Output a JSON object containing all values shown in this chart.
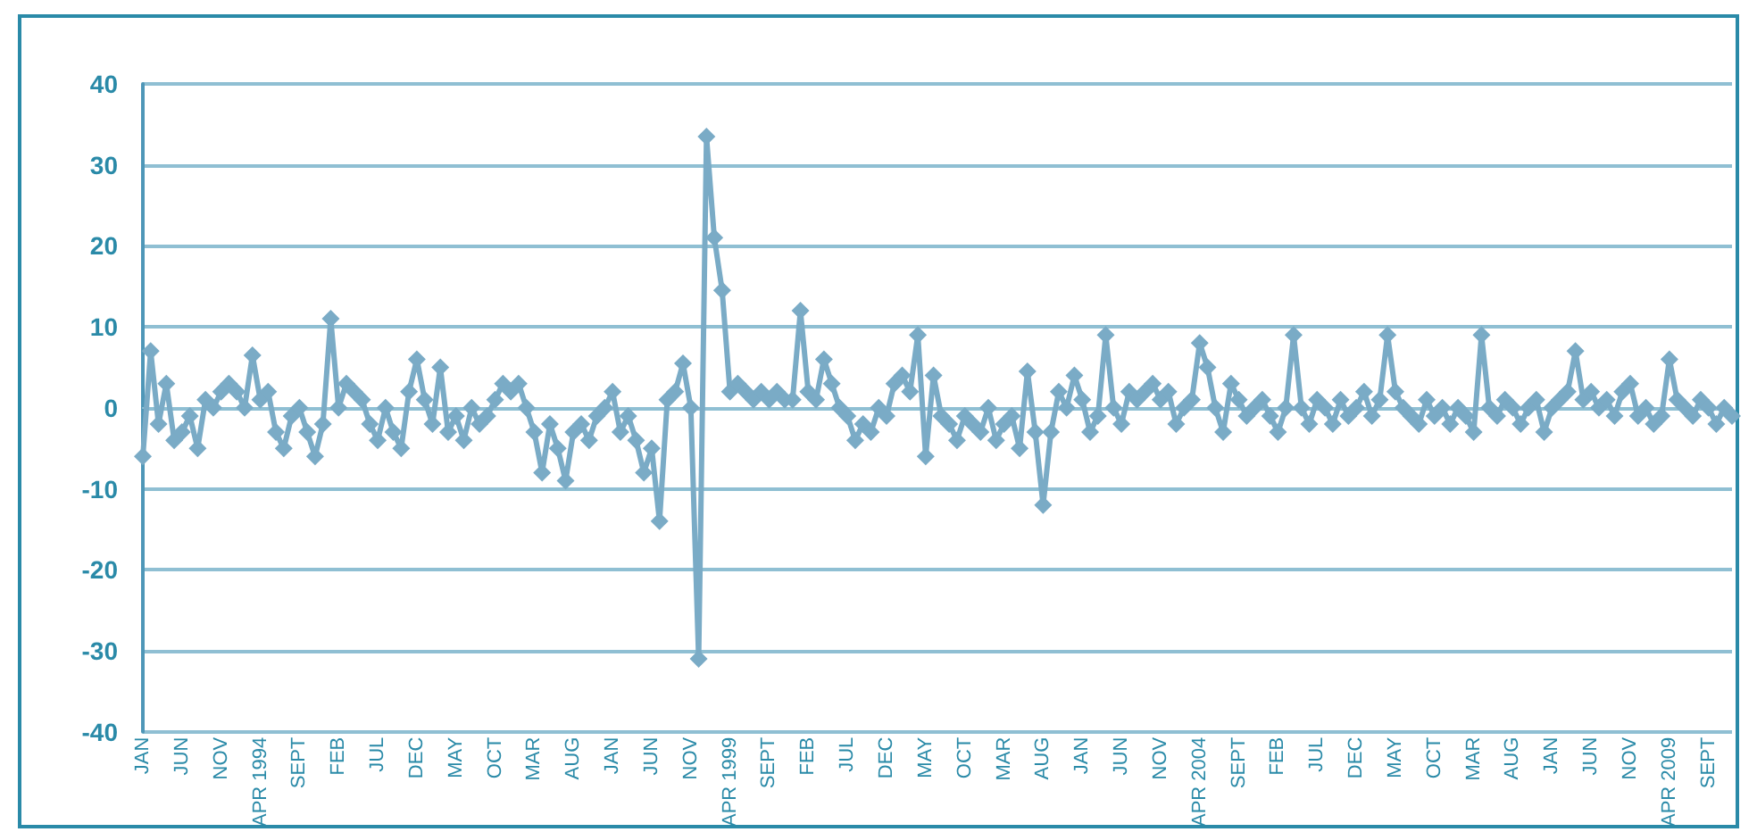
{
  "chart_data": {
    "type": "line",
    "marker": "diamond",
    "line_style": "solid",
    "grid": "y",
    "categories": [
      "JAN",
      null,
      null,
      null,
      null,
      "JUN",
      null,
      null,
      null,
      null,
      "NOV",
      null,
      null,
      null,
      null,
      "APR 1994",
      null,
      null,
      null,
      null,
      "SEPT",
      null,
      null,
      null,
      null,
      "FEB",
      null,
      null,
      null,
      null,
      "JUL",
      null,
      null,
      null,
      null,
      "DEC",
      null,
      null,
      null,
      null,
      "MAY",
      null,
      null,
      null,
      null,
      "OCT",
      null,
      null,
      null,
      null,
      "MAR",
      null,
      null,
      null,
      null,
      "AUG",
      null,
      null,
      null,
      null,
      "JAN",
      null,
      null,
      null,
      null,
      "JUN",
      null,
      null,
      null,
      null,
      "NOV",
      null,
      null,
      null,
      null,
      "APR 1999",
      null,
      null,
      null,
      null,
      "SEPT",
      null,
      null,
      null,
      null,
      "FEB",
      null,
      null,
      null,
      null,
      "JUL",
      null,
      null,
      null,
      null,
      "DEC",
      null,
      null,
      null,
      null,
      "MAY",
      null,
      null,
      null,
      null,
      "OCT",
      null,
      null,
      null,
      null,
      "MAR",
      null,
      null,
      null,
      null,
      "AUG",
      null,
      null,
      null,
      null,
      "JAN",
      null,
      null,
      null,
      null,
      "JUN",
      null,
      null,
      null,
      null,
      "NOV",
      null,
      null,
      null,
      null,
      "APR 2004",
      null,
      null,
      null,
      null,
      "SEPT",
      null,
      null,
      null,
      null,
      "FEB",
      null,
      null,
      null,
      null,
      "JUL",
      null,
      null,
      null,
      null,
      "DEC",
      null,
      null,
      null,
      null,
      "MAY",
      null,
      null,
      null,
      null,
      "OCT",
      null,
      null,
      null,
      null,
      "MAR",
      null,
      null,
      null,
      null,
      "AUG",
      null,
      null,
      null,
      null,
      "JAN",
      null,
      null,
      null,
      null,
      "JUN",
      null,
      null,
      null,
      null,
      "NOV",
      null,
      null,
      null,
      null,
      "APR 2009",
      null,
      null,
      null,
      null,
      "SEPT",
      null,
      null,
      null
    ],
    "series": [
      {
        "color": "#7aabc6",
        "values": [
          -6,
          7,
          -2,
          3,
          -4,
          -3,
          -1,
          -5,
          1,
          0,
          2,
          3,
          2,
          0,
          6.5,
          1,
          2,
          -3,
          -5,
          -1,
          0,
          -3,
          -6,
          -2,
          11,
          0,
          3,
          2,
          1,
          -2,
          -4,
          0,
          -3,
          -5,
          2,
          6,
          1,
          -2,
          5,
          -3,
          -1,
          -4,
          0,
          -2,
          -1,
          1,
          3,
          2,
          3,
          0,
          -3,
          -8,
          -2,
          -5,
          -9,
          -3,
          -2,
          -4,
          -1,
          0,
          2,
          -3,
          -1,
          -4,
          -8,
          -5,
          -14,
          1,
          2,
          5.5,
          0,
          -31,
          33.5,
          21,
          14.5,
          2,
          3,
          2,
          1,
          2,
          1,
          2,
          1,
          1,
          12,
          2,
          1,
          6,
          3,
          0,
          -1,
          -4,
          -2,
          -3,
          0,
          -1,
          3,
          4,
          2,
          9,
          -6,
          4,
          -1,
          -2,
          -4,
          -1,
          -2,
          -3,
          0,
          -4,
          -2,
          -1,
          -5,
          4.5,
          -3,
          -12,
          -3,
          2,
          0,
          4,
          1,
          -3,
          -1,
          9,
          0,
          -2,
          2,
          1,
          2,
          3,
          1,
          2,
          -2,
          0,
          1,
          8,
          5,
          0,
          -3,
          3,
          1,
          -1,
          0,
          1,
          -1,
          -3,
          0,
          9,
          0,
          -2,
          1,
          0,
          -2,
          1,
          -1,
          0,
          2,
          -1,
          1,
          9,
          2,
          0,
          -1,
          -2,
          1,
          -1,
          0,
          -2,
          0,
          -1,
          -3,
          9,
          0,
          -1,
          1,
          0,
          -2,
          0,
          1,
          -3,
          0,
          1,
          2,
          7,
          1,
          2,
          0,
          1,
          -1,
          2,
          3,
          -1,
          0,
          -2,
          -1,
          6,
          1,
          0,
          -1,
          1,
          0,
          -2,
          0,
          -1
        ]
      }
    ],
    "ylim": [
      -40,
      40
    ],
    "yticks": [
      -40,
      -30,
      -20,
      -10,
      0,
      10,
      20,
      30,
      40
    ]
  }
}
